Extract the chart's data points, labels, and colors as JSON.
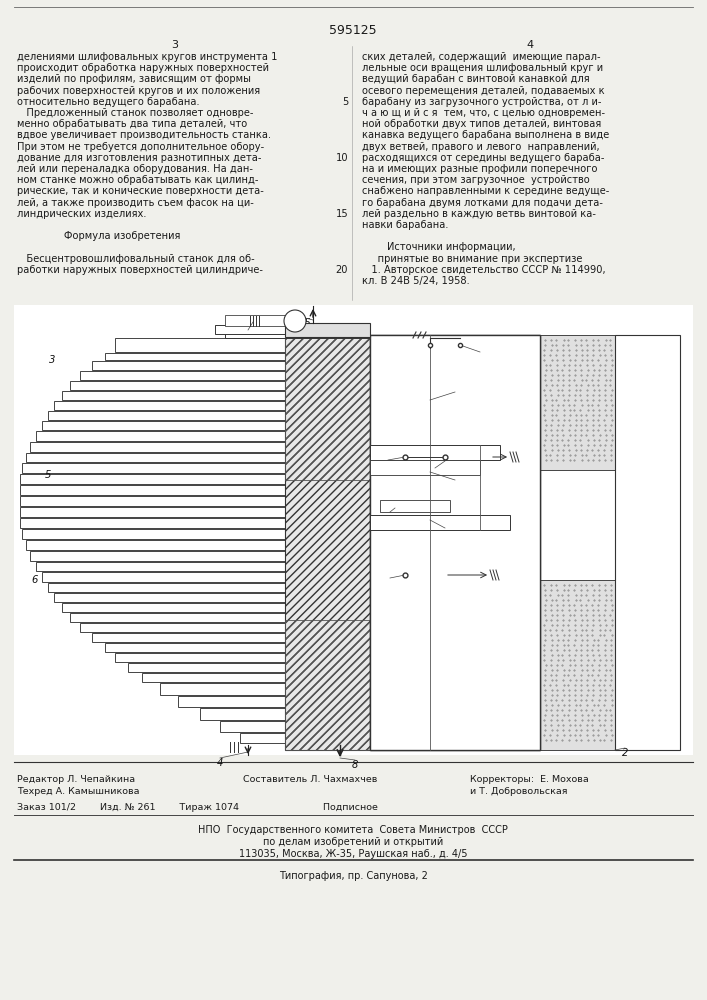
{
  "patent_number": "595125",
  "page_numbers": [
    "3",
    "4"
  ],
  "background_color": "#f0f0eb",
  "text_color": "#1a1a1a",
  "col_left_lines": [
    "делениями шлифовальных кругов инструмента 1",
    "происходит обработка наружных поверхностей",
    "изделий по профилям, зависящим от формы",
    "рабочих поверхностей кругов и их положения",
    "относительно ведущего барабана.",
    "   Предложенный станок позволяет одновре-",
    "менно обрабатывать два типа деталей, что",
    "вдвое увеличивает производительность станка.",
    "При этом не требуется дополнительное обору-",
    "дование для изготовления разнотипных дета-",
    "лей или переналадка оборудования. На дан-",
    "ном станке можно обрабатывать как цилинд-",
    "рические, так и конические поверхности дета-",
    "лей, а также производить съем фасок на ци-",
    "линдрических изделиях.",
    "",
    "               Формула изобретения",
    "",
    "   Бесцентровошлифовальный станок для об-",
    "работки наружных поверхностей цилиндриче-"
  ],
  "col_right_lines": [
    "ских деталей, содержащий  имеющие парал-",
    "лельные оси вращения шлифовальный круг и",
    "ведущий барабан с винтовой канавкой для",
    "осевого перемещения деталей, подаваемых к",
    "барабану из загрузочного устройства, от л и-",
    "ч а ю щ и й с я  тем, что, с целью одновремен-",
    "ной обработки двух типов деталей, винтовая",
    "канавка ведущего барабана выполнена в виде",
    "двух ветвей, правого и левого  направлений,",
    "расходящихся от середины ведущего бараба-",
    "на и имеющих разные профили поперечного",
    "сечения, при этом загрузочное  устройство",
    "снабжено направленными к середине ведуще-",
    "го барабана двумя лотками для подачи дета-",
    "лей раздельно в каждую ветвь винтовой ка-",
    "навки барабана.",
    "",
    "        Источники информации,",
    "     принятые во внимание при экспертизе",
    "   1. Авторское свидетельство СССР № 114990,",
    "кл. В 24В 5/24, 1958."
  ],
  "line_num_map": {
    "4": "5",
    "9": "10",
    "14": "15",
    "19": "20"
  },
  "footer_row1": [
    "Редактор Л. Чепайкина",
    "Составитель Л. Чахмахчев",
    "Корректоры:  Е. Мохова"
  ],
  "footer_row2": [
    "Техред А. Камышникова",
    "",
    "и Т. Добровольская"
  ],
  "footer_order": "Заказ 101/2        Изд. № 261        Тираж 1074                            Подписное",
  "footer_npo1": "НПО  Государственного комитета  Совета Министров  СССР",
  "footer_npo2": "по делам изобретений и открытий",
  "footer_npo3": "113035, Москва, Ж-35, Раушская наб., д. 4/5",
  "footer_typo": "Типография, пр. Сапунова, 2"
}
